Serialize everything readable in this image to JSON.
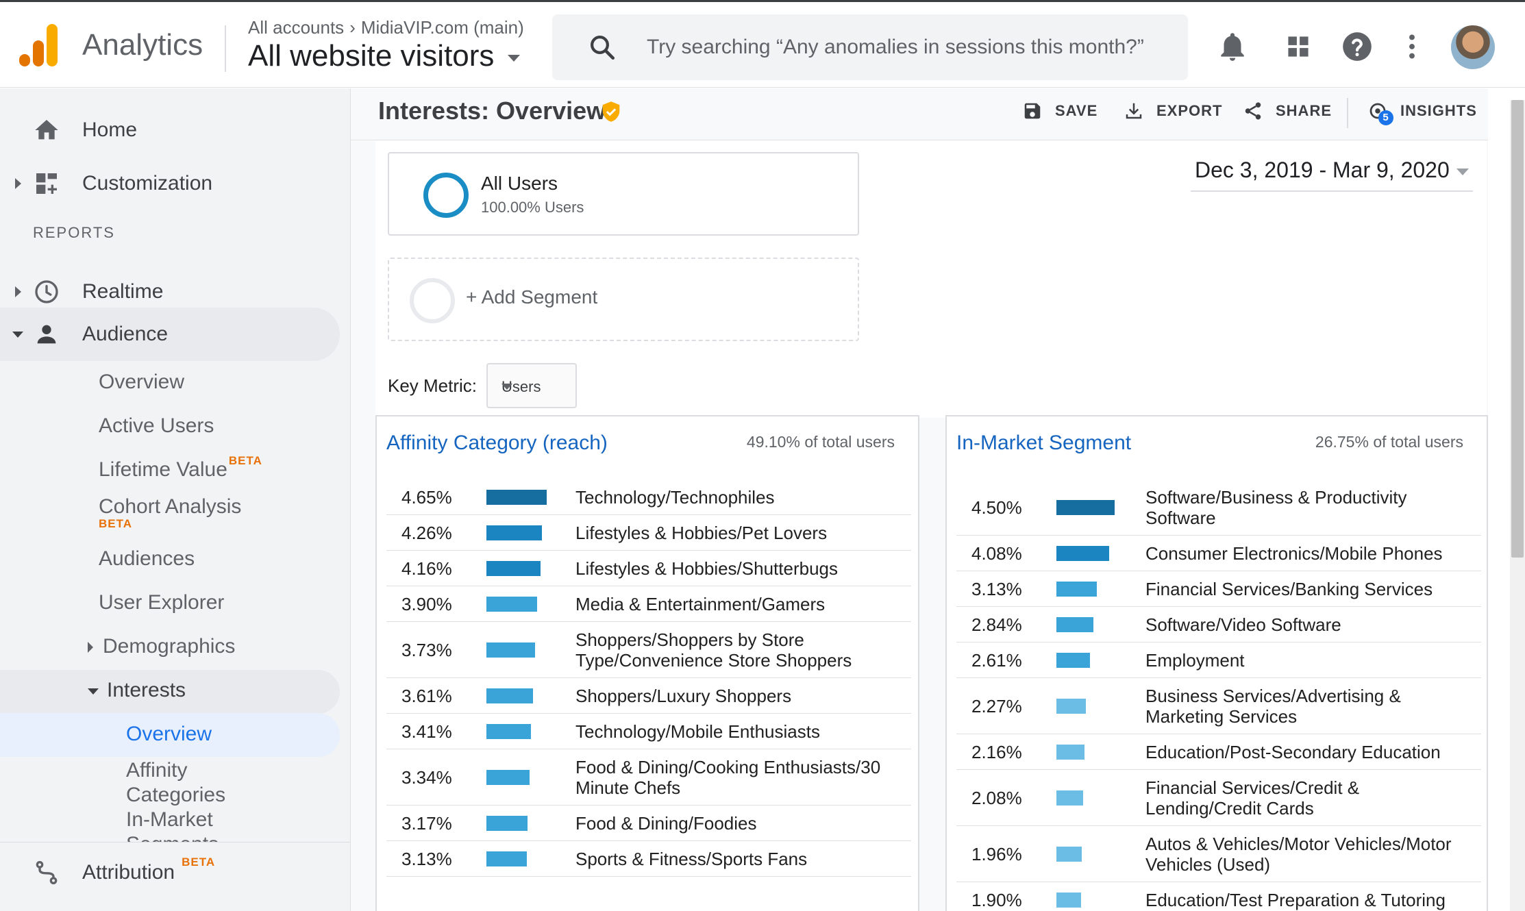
{
  "header": {
    "app_name": "Analytics",
    "account_crumb_root": "All accounts",
    "account_crumb_property": "MidiaVIP.com (main)",
    "view_name": "All website visitors",
    "search_placeholder": "Try searching “Any anomalies in sessions this month?”",
    "icons": [
      "bell-icon",
      "apps-grid-icon",
      "help-icon",
      "more-vert-icon",
      "avatar"
    ]
  },
  "sidebar": {
    "home": "Home",
    "customization": "Customization",
    "reports_label": "REPORTS",
    "realtime": "Realtime",
    "audience": "Audience",
    "audience_items": {
      "overview": "Overview",
      "active_users": "Active Users",
      "lifetime_value": "Lifetime Value",
      "cohort_analysis": "Cohort Analysis",
      "audiences": "Audiences",
      "user_explorer": "User Explorer",
      "demographics": "Demographics",
      "interests": "Interests",
      "interests_overview": "Overview",
      "affinity_line1": "Affinity",
      "affinity_line2": "Categories",
      "inmarket_line1": "In-Market",
      "inmarket_line2": "Segments"
    },
    "beta_label": "BETA",
    "attribution": "Attribution"
  },
  "page": {
    "title": "Interests: Overview",
    "actions": {
      "save": "SAVE",
      "export": "EXPORT",
      "share": "SHARE",
      "insights": "INSIGHTS",
      "insights_badge": "5"
    },
    "segment": {
      "name": "All Users",
      "pct": "100.00% Users",
      "add": "+ Add Segment"
    },
    "date_range": "Dec 3, 2019 - Mar 9, 2020",
    "key_metric_label": "Key Metric:",
    "key_metric_value": "Users"
  },
  "colors": {
    "dark_bar": "#156da0",
    "mid_bar": "#1a85c0",
    "light_bar": "#3aa3d8",
    "pale_bar": "#6cbde6",
    "link_blue": "#1565c0",
    "logo_orange": "#f9ab00",
    "logo_dark": "#e37400"
  },
  "affinity": {
    "title": "Affinity Category (reach)",
    "total": "49.10% of total users",
    "rows": [
      {
        "pct": "4.65%",
        "value": 4.65,
        "lines": [
          "Technology/Technophiles"
        ]
      },
      {
        "pct": "4.26%",
        "value": 4.26,
        "lines": [
          "Lifestyles & Hobbies/Pet Lovers"
        ]
      },
      {
        "pct": "4.16%",
        "value": 4.16,
        "lines": [
          "Lifestyles & Hobbies/Shutterbugs"
        ]
      },
      {
        "pct": "3.90%",
        "value": 3.9,
        "lines": [
          "Media & Entertainment/Gamers"
        ]
      },
      {
        "pct": "3.73%",
        "value": 3.73,
        "lines": [
          "Shoppers/Shoppers by Store",
          "Type/Convenience Store Shoppers"
        ]
      },
      {
        "pct": "3.61%",
        "value": 3.61,
        "lines": [
          "Shoppers/Luxury Shoppers"
        ]
      },
      {
        "pct": "3.41%",
        "value": 3.41,
        "lines": [
          "Technology/Mobile Enthusiasts"
        ]
      },
      {
        "pct": "3.34%",
        "value": 3.34,
        "lines": [
          "Food & Dining/Cooking Enthusiasts/30",
          "Minute Chefs"
        ]
      },
      {
        "pct": "3.17%",
        "value": 3.17,
        "lines": [
          "Food & Dining/Foodies"
        ]
      },
      {
        "pct": "3.13%",
        "value": 3.13,
        "lines": [
          "Sports & Fitness/Sports Fans"
        ]
      }
    ]
  },
  "inmarket": {
    "title": "In-Market Segment",
    "total": "26.75% of total users",
    "rows": [
      {
        "pct": "4.50%",
        "value": 4.5,
        "lines": [
          "Software/Business & Productivity",
          "Software"
        ]
      },
      {
        "pct": "4.08%",
        "value": 4.08,
        "lines": [
          "Consumer Electronics/Mobile Phones"
        ]
      },
      {
        "pct": "3.13%",
        "value": 3.13,
        "lines": [
          "Financial Services/Banking Services"
        ]
      },
      {
        "pct": "2.84%",
        "value": 2.84,
        "lines": [
          "Software/Video Software"
        ]
      },
      {
        "pct": "2.61%",
        "value": 2.61,
        "lines": [
          "Employment"
        ]
      },
      {
        "pct": "2.27%",
        "value": 2.27,
        "lines": [
          "Business Services/Advertising &",
          "Marketing Services"
        ]
      },
      {
        "pct": "2.16%",
        "value": 2.16,
        "lines": [
          "Education/Post-Secondary Education"
        ]
      },
      {
        "pct": "2.08%",
        "value": 2.08,
        "lines": [
          "Financial Services/Credit &",
          "Lending/Credit Cards"
        ]
      },
      {
        "pct": "1.96%",
        "value": 1.96,
        "lines": [
          "Autos & Vehicles/Motor Vehicles/Motor",
          "Vehicles (Used)"
        ]
      },
      {
        "pct": "1.90%",
        "value": 1.9,
        "lines": [
          "Education/Test Preparation & Tutoring"
        ]
      }
    ]
  }
}
